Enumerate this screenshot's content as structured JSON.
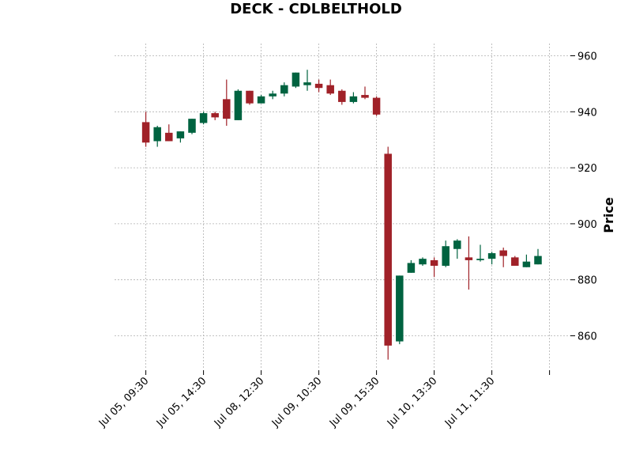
{
  "chart_data": {
    "type": "candlestick",
    "title": "DECK - CDLBELTHOLD",
    "ylabel": "Price",
    "xlabel": "",
    "ylim": [
      846,
      960
    ],
    "yticks": [
      860,
      880,
      900,
      920,
      940,
      960
    ],
    "grid": true,
    "y_axis_side": "right",
    "colors": {
      "up": "#006340",
      "down": "#a02128",
      "grid": "#b0b0b0"
    },
    "xtick_labels": [
      {
        "index": 0,
        "label": "Jul 05, 09:30"
      },
      {
        "index": 5,
        "label": "Jul 05, 14:30"
      },
      {
        "index": 10,
        "label": "Jul 08, 12:30"
      },
      {
        "index": 15,
        "label": "Jul 09, 10:30"
      },
      {
        "index": 20,
        "label": "Jul 09, 15:30"
      },
      {
        "index": 25,
        "label": "Jul 10, 13:30"
      },
      {
        "index": 30,
        "label": "Jul 11, 11:30"
      },
      {
        "index": 35,
        "label": ""
      }
    ],
    "candles": [
      {
        "o": 936.3,
        "h": 940.0,
        "l": 927.5,
        "c": 929.0
      },
      {
        "o": 929.5,
        "h": 935.0,
        "l": 927.5,
        "c": 934.5
      },
      {
        "o": 932.5,
        "h": 935.5,
        "l": 929.5,
        "c": 929.5
      },
      {
        "o": 930.5,
        "h": 933.0,
        "l": 929.0,
        "c": 933.0
      },
      {
        "o": 932.5,
        "h": 937.5,
        "l": 932.0,
        "c": 937.5
      },
      {
        "o": 936.0,
        "h": 940.0,
        "l": 935.5,
        "c": 939.5
      },
      {
        "o": 939.5,
        "h": 940.0,
        "l": 937.0,
        "c": 938.0
      },
      {
        "o": 944.5,
        "h": 951.5,
        "l": 935.0,
        "c": 937.5
      },
      {
        "o": 937.0,
        "h": 948.0,
        "l": 937.0,
        "c": 947.5
      },
      {
        "o": 947.5,
        "h": 947.5,
        "l": 942.5,
        "c": 943.0
      },
      {
        "o": 943.0,
        "h": 946.0,
        "l": 943.0,
        "c": 945.5
      },
      {
        "o": 945.5,
        "h": 947.5,
        "l": 944.5,
        "c": 946.5
      },
      {
        "o": 946.5,
        "h": 950.5,
        "l": 945.5,
        "c": 949.5
      },
      {
        "o": 949.0,
        "h": 954.0,
        "l": 948.5,
        "c": 954.0
      },
      {
        "o": 949.5,
        "h": 955.0,
        "l": 947.5,
        "c": 950.5
      },
      {
        "o": 950.0,
        "h": 951.5,
        "l": 947.0,
        "c": 948.5
      },
      {
        "o": 949.5,
        "h": 951.5,
        "l": 946.0,
        "c": 946.5
      },
      {
        "o": 947.5,
        "h": 948.0,
        "l": 942.5,
        "c": 943.5
      },
      {
        "o": 943.5,
        "h": 947.0,
        "l": 943.0,
        "c": 945.5
      },
      {
        "o": 946.0,
        "h": 949.0,
        "l": 944.5,
        "c": 945.0
      },
      {
        "o": 945.0,
        "h": 945.5,
        "l": 938.5,
        "c": 939.0
      },
      {
        "o": 925.0,
        "h": 927.5,
        "l": 851.5,
        "c": 856.5
      },
      {
        "o": 858.0,
        "h": 881.5,
        "l": 857.0,
        "c": 881.5
      },
      {
        "o": 882.5,
        "h": 887.0,
        "l": 882.5,
        "c": 886.0
      },
      {
        "o": 885.5,
        "h": 888.0,
        "l": 885.0,
        "c": 887.5
      },
      {
        "o": 887.0,
        "h": 888.0,
        "l": 881.0,
        "c": 885.0
      },
      {
        "o": 885.0,
        "h": 894.0,
        "l": 884.5,
        "c": 892.0
      },
      {
        "o": 891.0,
        "h": 894.5,
        "l": 887.5,
        "c": 894.0
      },
      {
        "o": 888.0,
        "h": 895.5,
        "l": 876.5,
        "c": 887.0
      },
      {
        "o": 887.0,
        "h": 892.5,
        "l": 886.5,
        "c": 887.5
      },
      {
        "o": 887.5,
        "h": 890.0,
        "l": 885.5,
        "c": 889.5
      },
      {
        "o": 890.5,
        "h": 891.5,
        "l": 884.5,
        "c": 888.5
      },
      {
        "o": 888.0,
        "h": 888.5,
        "l": 885.0,
        "c": 885.0
      },
      {
        "o": 884.5,
        "h": 889.0,
        "l": 884.5,
        "c": 886.5
      },
      {
        "o": 885.5,
        "h": 891.0,
        "l": 885.5,
        "c": 888.5
      }
    ]
  }
}
